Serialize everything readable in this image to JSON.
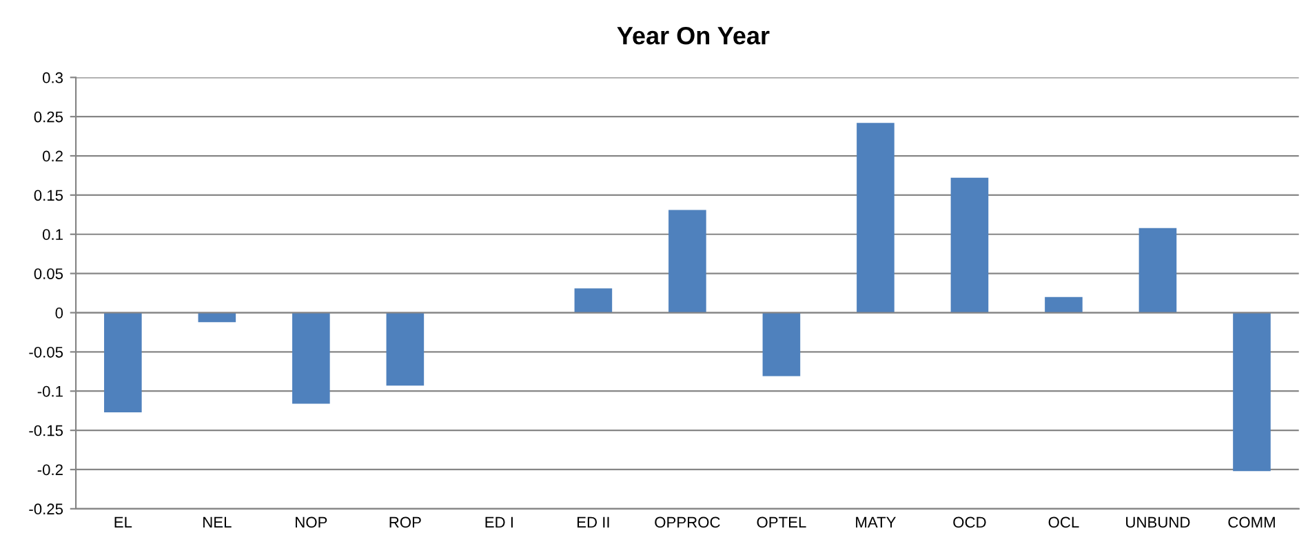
{
  "chart_data": {
    "type": "bar",
    "title": "Year On Year",
    "categories": [
      "EL",
      "NEL",
      "NOP",
      "ROP",
      "ED I",
      "ED II",
      "OPPROC",
      "OPTEL",
      "MATY",
      "OCD",
      "OCL",
      "UNBUND",
      "COMM"
    ],
    "values": [
      -0.127,
      -0.012,
      -0.116,
      -0.093,
      0,
      0.031,
      0.131,
      -0.081,
      0.242,
      0.172,
      0.02,
      0.108,
      -0.202
    ],
    "color": "#4f81bd",
    "ylim": [
      -0.25,
      0.3
    ],
    "yticks": [
      -0.25,
      -0.2,
      -0.15,
      -0.1,
      -0.05,
      0,
      0.05,
      0.1,
      0.15,
      0.2,
      0.25,
      0.3
    ],
    "grid": "y",
    "legend": false
  }
}
